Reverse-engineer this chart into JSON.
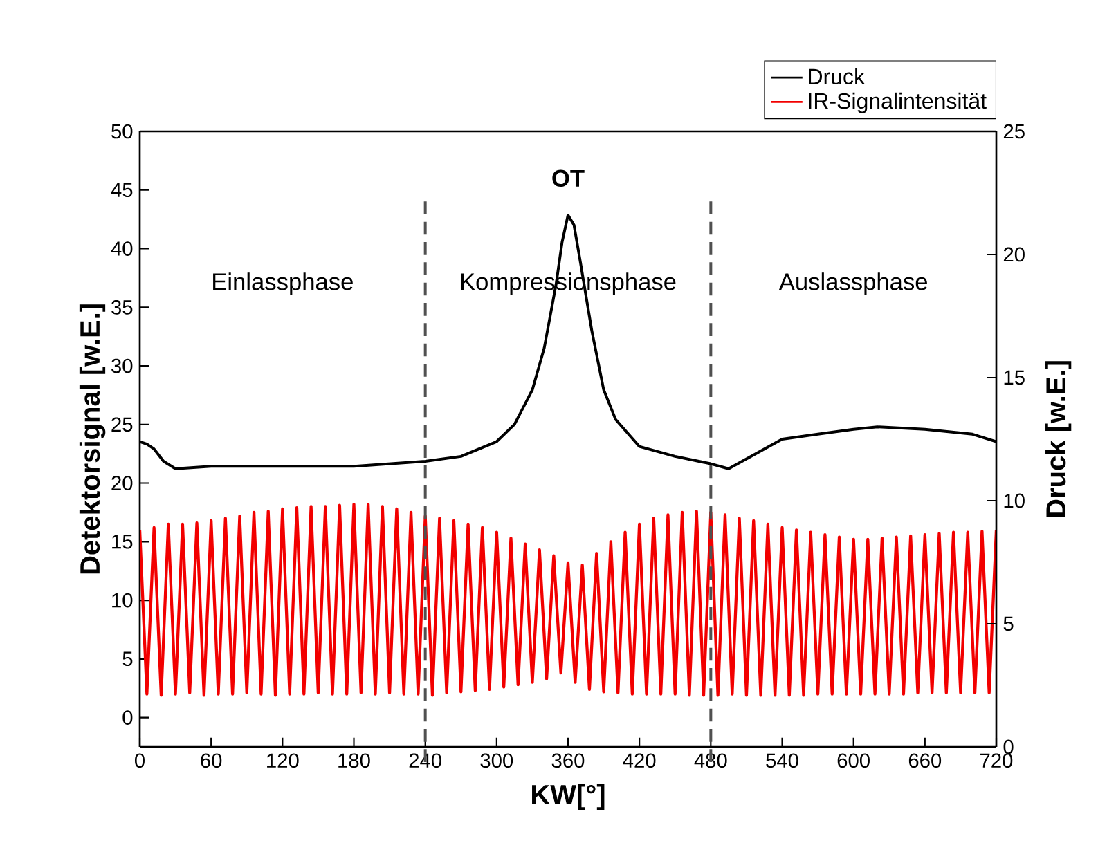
{
  "chart_data": {
    "type": "line",
    "xlabel": "KW[°]",
    "ylabel": "Detektorsignal [w.E.]",
    "y2label": "Druck [w.E.]",
    "xlim": [
      0,
      720
    ],
    "xticks": [
      0,
      60,
      120,
      180,
      240,
      300,
      360,
      420,
      480,
      540,
      600,
      660,
      720
    ],
    "ylim": [
      -2.5,
      50
    ],
    "yticks": [
      0,
      5,
      10,
      15,
      20,
      25,
      30,
      35,
      40,
      45,
      50
    ],
    "y2lim": [
      0,
      25
    ],
    "y2ticks": [
      0,
      5,
      10,
      15,
      20,
      25
    ],
    "legend": "top right",
    "x": [
      0,
      6,
      12,
      18,
      24,
      30,
      36,
      42,
      48,
      54,
      60,
      66,
      72,
      78,
      84,
      90,
      96,
      102,
      108,
      114,
      120,
      126,
      132,
      138,
      144,
      150,
      156,
      162,
      168,
      174,
      180,
      186,
      192,
      198,
      204,
      210,
      216,
      222,
      228,
      234,
      240,
      246,
      252,
      258,
      264,
      270,
      276,
      282,
      288,
      294,
      300,
      306,
      312,
      318,
      324,
      330,
      336,
      342,
      348,
      354,
      360,
      366,
      372,
      378,
      384,
      390,
      396,
      402,
      408,
      414,
      420,
      426,
      432,
      438,
      444,
      450,
      456,
      462,
      468,
      474,
      480,
      486,
      492,
      498,
      504,
      510,
      516,
      522,
      528,
      534,
      540,
      546,
      552,
      558,
      564,
      570,
      576,
      582,
      588,
      594,
      600,
      606,
      612,
      618,
      624,
      630,
      636,
      642,
      648,
      654,
      660,
      666,
      672,
      678,
      684,
      690,
      696,
      702,
      708,
      714,
      720
    ],
    "series": [
      {
        "name": "Druck",
        "color": "#000000",
        "axis": "y2",
        "x": [
          0,
          6,
          12,
          20,
          30,
          60,
          120,
          180,
          240,
          270,
          300,
          315,
          330,
          340,
          350,
          355,
          360,
          365,
          370,
          380,
          390,
          400,
          420,
          450,
          480,
          495,
          510,
          525,
          540,
          570,
          600,
          620,
          660,
          700,
          720
        ],
        "values": [
          12.4,
          12.3,
          12.1,
          11.6,
          11.3,
          11.4,
          11.4,
          11.4,
          11.6,
          11.8,
          12.4,
          13.1,
          14.5,
          16.2,
          18.8,
          20.5,
          21.6,
          21.2,
          19.8,
          16.9,
          14.5,
          13.3,
          12.2,
          11.8,
          11.5,
          11.3,
          11.7,
          12.1,
          12.5,
          12.7,
          12.9,
          13,
          12.9,
          12.7,
          12.4
        ]
      },
      {
        "name": "IR-Signalintensität",
        "color": "#f20000",
        "values": [
          16,
          2,
          16.2,
          1.9,
          16.5,
          2,
          16.5,
          2.1,
          16.6,
          1.9,
          16.8,
          2,
          17,
          2,
          17.2,
          2.1,
          17.5,
          2,
          17.6,
          1.9,
          17.8,
          2,
          17.9,
          2,
          18,
          2.1,
          18,
          2,
          18.1,
          2,
          18.2,
          2.1,
          18.2,
          2,
          18,
          2.1,
          17.8,
          2,
          17.5,
          2,
          17.2,
          1.9,
          17,
          2.1,
          16.8,
          2.2,
          16.5,
          2.3,
          16.2,
          2.4,
          15.8,
          2.6,
          15.3,
          2.8,
          14.8,
          3,
          14.3,
          3.3,
          13.8,
          3.8,
          13.2,
          3,
          13,
          2.4,
          14,
          2.2,
          15,
          2.1,
          15.8,
          2,
          16.5,
          2,
          17,
          2,
          17.3,
          2,
          17.5,
          1.9,
          17.6,
          1.9,
          17.5,
          1.9,
          17.3,
          2,
          17,
          1.9,
          16.8,
          1.9,
          16.5,
          1.9,
          16.2,
          1.9,
          16,
          1.9,
          15.8,
          2,
          15.6,
          2,
          15.4,
          2,
          15.2,
          2,
          15.2,
          2,
          15.3,
          2,
          15.4,
          2,
          15.5,
          2.1,
          15.6,
          2.1,
          15.7,
          2.1,
          15.8,
          2.1,
          15.8,
          2.1,
          15.9,
          2.1,
          16
        ]
      }
    ],
    "ref_lines": [
      {
        "axis": "x",
        "value": 240,
        "color": "#505050",
        "line_style": "dashed"
      },
      {
        "axis": "x",
        "value": 480,
        "color": "#505050",
        "line_style": "dashed"
      }
    ],
    "annotations": [
      "**OT**",
      "Einlassphase",
      "Kompressionsphase",
      "Auslassphase"
    ]
  }
}
